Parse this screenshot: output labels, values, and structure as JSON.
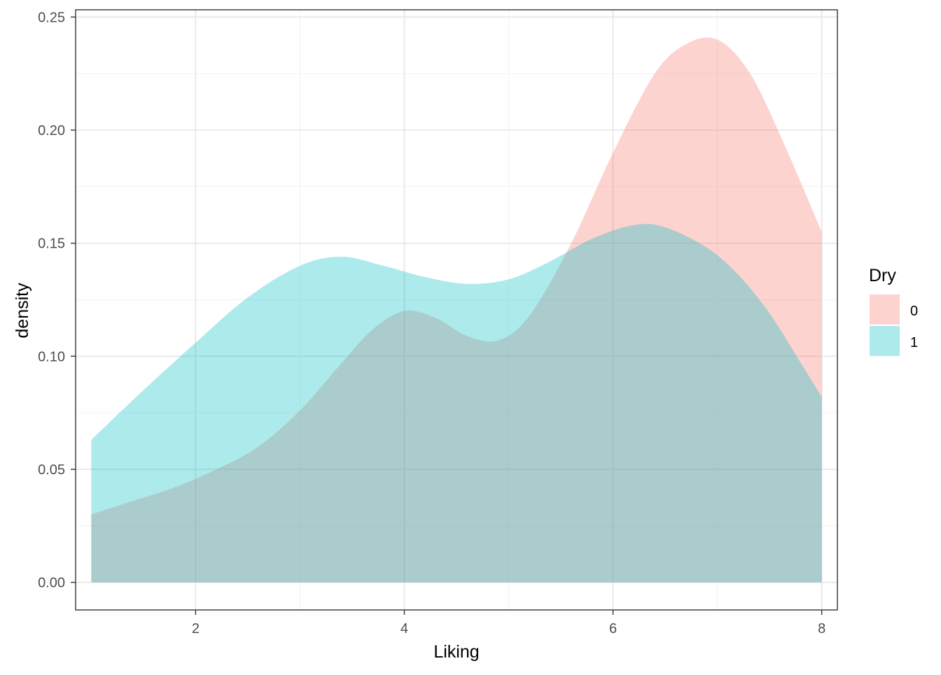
{
  "chart_data": {
    "type": "area",
    "title": "",
    "xlabel": "Liking",
    "ylabel": "density",
    "xlim": [
      0.85,
      8.15
    ],
    "ylim": [
      -0.0122,
      0.2532
    ],
    "x_ticks": [
      2,
      4,
      6,
      8
    ],
    "x_tick_labels": [
      "2",
      "4",
      "6",
      "8"
    ],
    "y_ticks": [
      0,
      0.05,
      0.1,
      0.15,
      0.2,
      0.25
    ],
    "y_tick_labels": [
      "0.00",
      "0.05",
      "0.10",
      "0.15",
      "0.20",
      "0.25"
    ],
    "grid": true,
    "legend": {
      "title": "Dry",
      "position": "right"
    },
    "series": [
      {
        "name": "0",
        "color": "#F8766D",
        "points": [
          [
            1.0,
            0.03
          ],
          [
            1.4,
            0.036
          ],
          [
            1.8,
            0.042
          ],
          [
            2.2,
            0.05
          ],
          [
            2.6,
            0.06
          ],
          [
            3.0,
            0.076
          ],
          [
            3.4,
            0.097
          ],
          [
            3.7,
            0.112
          ],
          [
            4.0,
            0.12
          ],
          [
            4.3,
            0.117
          ],
          [
            4.6,
            0.109
          ],
          [
            4.9,
            0.107
          ],
          [
            5.2,
            0.118
          ],
          [
            5.6,
            0.15
          ],
          [
            6.0,
            0.19
          ],
          [
            6.4,
            0.225
          ],
          [
            6.7,
            0.238
          ],
          [
            7.0,
            0.24
          ],
          [
            7.3,
            0.226
          ],
          [
            7.6,
            0.198
          ],
          [
            8.0,
            0.155
          ]
        ]
      },
      {
        "name": "1",
        "color": "#00BFC4",
        "points": [
          [
            1.0,
            0.063
          ],
          [
            1.5,
            0.085
          ],
          [
            2.0,
            0.106
          ],
          [
            2.5,
            0.126
          ],
          [
            3.0,
            0.14
          ],
          [
            3.4,
            0.144
          ],
          [
            3.8,
            0.14
          ],
          [
            4.2,
            0.135
          ],
          [
            4.6,
            0.132
          ],
          [
            5.0,
            0.134
          ],
          [
            5.4,
            0.142
          ],
          [
            5.8,
            0.152
          ],
          [
            6.2,
            0.158
          ],
          [
            6.5,
            0.157
          ],
          [
            6.9,
            0.148
          ],
          [
            7.2,
            0.136
          ],
          [
            7.5,
            0.119
          ],
          [
            7.8,
            0.097
          ],
          [
            8.0,
            0.082
          ]
        ]
      }
    ]
  }
}
